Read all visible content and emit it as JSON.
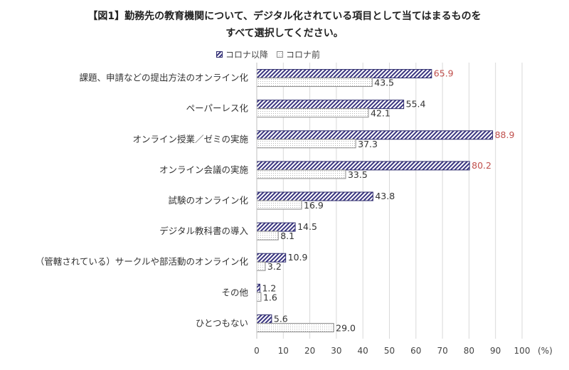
{
  "chart_data": {
    "type": "bar",
    "orientation": "horizontal",
    "title_line1": "【図1】勤務先の教育機関について、デジタル化されている項目として当てはまるものを",
    "title_line2": "すべて選択してください。",
    "categories": [
      "課題、申請などの提出方法のオンライン化",
      "ペーパーレス化",
      "オンライン授業／ゼミの実施",
      "オンライン会議の実施",
      "試験のオンライン化",
      "デジタル教科書の導入",
      "（管轄されている）サークルや部活動のオンライン化",
      "その他",
      "ひとつもない"
    ],
    "series": [
      {
        "name": "コロナ以降",
        "values": [
          65.9,
          55.4,
          88.9,
          80.2,
          43.8,
          14.5,
          10.9,
          1.2,
          5.6
        ],
        "labels": [
          "65.9",
          "55.4",
          "88.9",
          "80.2",
          "43.8",
          "14.5",
          "10.9",
          "1.2",
          "5.6"
        ],
        "label_colors": [
          "#c0504d",
          "#333333",
          "#c0504d",
          "#c0504d",
          "#333333",
          "#333333",
          "#333333",
          "#333333",
          "#333333"
        ]
      },
      {
        "name": "コロナ前",
        "values": [
          43.5,
          42.1,
          37.3,
          33.5,
          16.9,
          8.1,
          3.2,
          1.6,
          29.0
        ],
        "labels": [
          "43.5",
          "42.1",
          "37.3",
          "33.5",
          "16.9",
          "8.1",
          "3.2",
          "1.6",
          "29.0"
        ]
      }
    ],
    "xlim": [
      0,
      100
    ],
    "xticks": [
      "0",
      "10",
      "20",
      "30",
      "40",
      "50",
      "60",
      "70",
      "80",
      "90",
      "100"
    ],
    "xunit": "(%)",
    "grid": "vertical",
    "legend_position": "top",
    "colors": {
      "series1_stroke": "#2f2d6e",
      "series1_hatch": "#3a3580",
      "series2_stroke": "#8a8a8a",
      "series2_fill": "#e8e8e8",
      "highlight_label": "#c0504d",
      "grid": "#d9d9d9"
    }
  }
}
